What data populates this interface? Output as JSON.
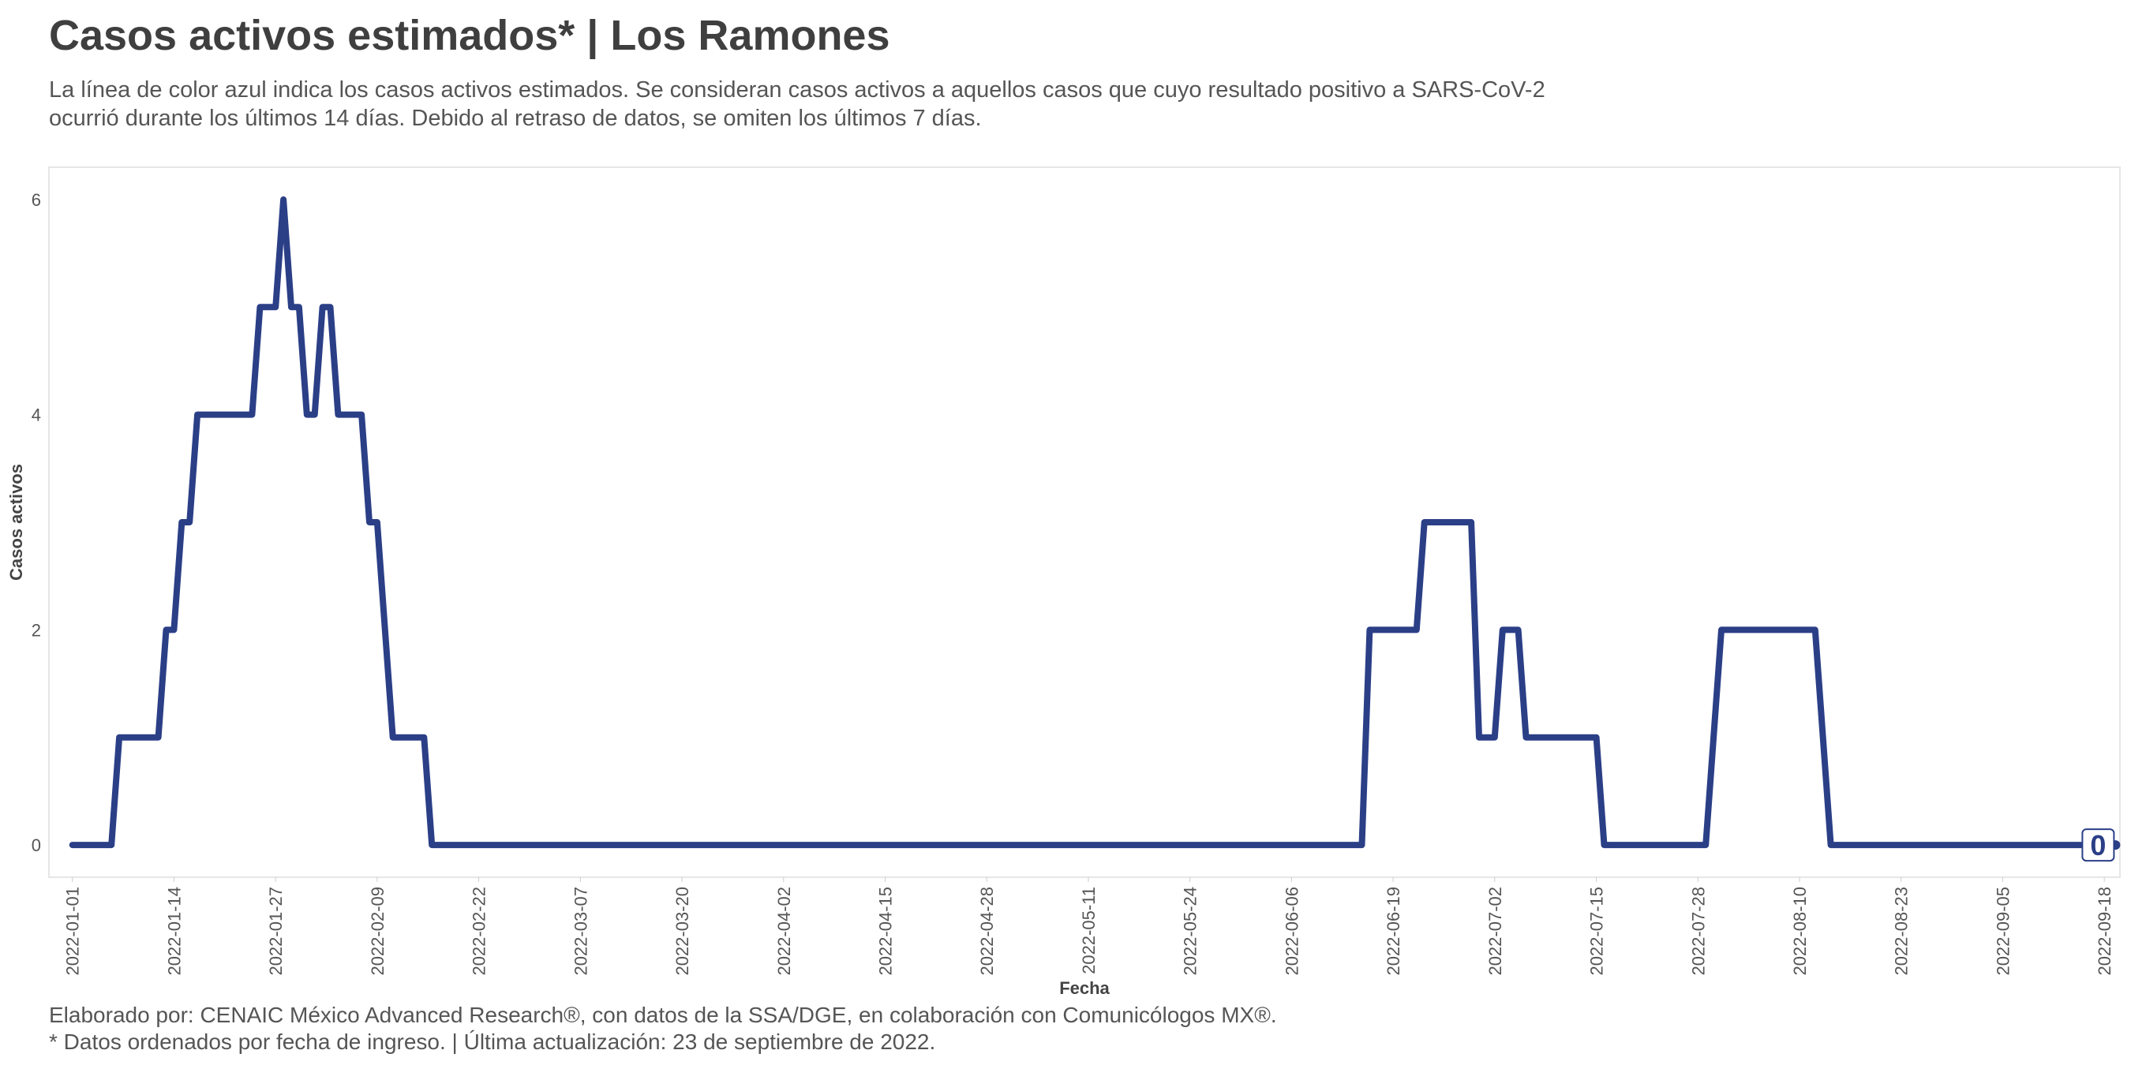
{
  "header": {
    "title": "Casos activos estimados* | Los Ramones",
    "subtitle": "La línea de color azul indica los casos activos estimados. Se consideran casos activos a aquellos casos que cuyo resultado positivo a SARS-CoV-2 ocurrió durante los últimos 14 días. Debido al retraso de datos, se omiten los últimos 7 días."
  },
  "footer": {
    "line1": "Elaborado por: CENAIC México Advanced Research®, con datos de la SSA/DGE, en colaboración con Comunicólogos MX®.",
    "line2": "* Datos ordenados por fecha de ingreso. | Última actualización: 23 de septiembre de 2022."
  },
  "colors": {
    "line": "#2b3f87",
    "plot_border": "#e6e6e6"
  },
  "chart_data": {
    "type": "line",
    "title": "Casos activos estimados* | Los Ramones",
    "xlabel": "Fecha",
    "ylabel": "Casos activos",
    "x_start": "2022-01-01",
    "xlim": [
      "2021-12-29",
      "2022-09-20"
    ],
    "ylim": [
      -0.3,
      6.3
    ],
    "yticks": [
      0,
      2,
      4,
      6
    ],
    "xticks": [
      "2022-01-01",
      "2022-01-14",
      "2022-01-27",
      "2022-02-09",
      "2022-02-22",
      "2022-03-07",
      "2022-03-20",
      "2022-04-02",
      "2022-04-15",
      "2022-04-28",
      "2022-05-11",
      "2022-05-24",
      "2022-06-06",
      "2022-06-19",
      "2022-07-02",
      "2022-07-15",
      "2022-07-28",
      "2022-08-10",
      "2022-08-23",
      "2022-09-05",
      "2022-09-18"
    ],
    "grid": false,
    "legend": "none",
    "series": [
      {
        "points": [
          [
            "2022-01-01",
            0
          ],
          [
            "2022-01-06",
            0
          ],
          [
            "2022-01-07",
            1
          ],
          [
            "2022-01-12",
            1
          ],
          [
            "2022-01-13",
            2
          ],
          [
            "2022-01-14",
            2
          ],
          [
            "2022-01-15",
            3
          ],
          [
            "2022-01-16",
            3
          ],
          [
            "2022-01-17",
            4
          ],
          [
            "2022-01-24",
            4
          ],
          [
            "2022-01-25",
            5
          ],
          [
            "2022-01-27",
            5
          ],
          [
            "2022-01-28",
            6
          ],
          [
            "2022-01-29",
            5
          ],
          [
            "2022-01-30",
            5
          ],
          [
            "2022-01-31",
            4
          ],
          [
            "2022-02-01",
            4
          ],
          [
            "2022-02-02",
            5
          ],
          [
            "2022-02-03",
            5
          ],
          [
            "2022-02-04",
            4
          ],
          [
            "2022-02-07",
            4
          ],
          [
            "2022-02-08",
            3
          ],
          [
            "2022-02-09",
            3
          ],
          [
            "2022-02-11",
            1
          ],
          [
            "2022-02-15",
            1
          ],
          [
            "2022-02-16",
            0
          ],
          [
            "2022-06-15",
            0
          ],
          [
            "2022-06-16",
            2
          ],
          [
            "2022-06-22",
            2
          ],
          [
            "2022-06-23",
            3
          ],
          [
            "2022-06-29",
            3
          ],
          [
            "2022-06-30",
            1
          ],
          [
            "2022-07-02",
            1
          ],
          [
            "2022-07-03",
            2
          ],
          [
            "2022-07-05",
            2
          ],
          [
            "2022-07-06",
            1
          ],
          [
            "2022-07-15",
            1
          ],
          [
            "2022-07-16",
            0
          ],
          [
            "2022-07-29",
            0
          ],
          [
            "2022-07-31",
            2
          ],
          [
            "2022-08-12",
            2
          ],
          [
            "2022-08-14",
            0
          ],
          [
            "2022-09-16",
            0
          ]
        ],
        "end_label": "0"
      }
    ]
  }
}
